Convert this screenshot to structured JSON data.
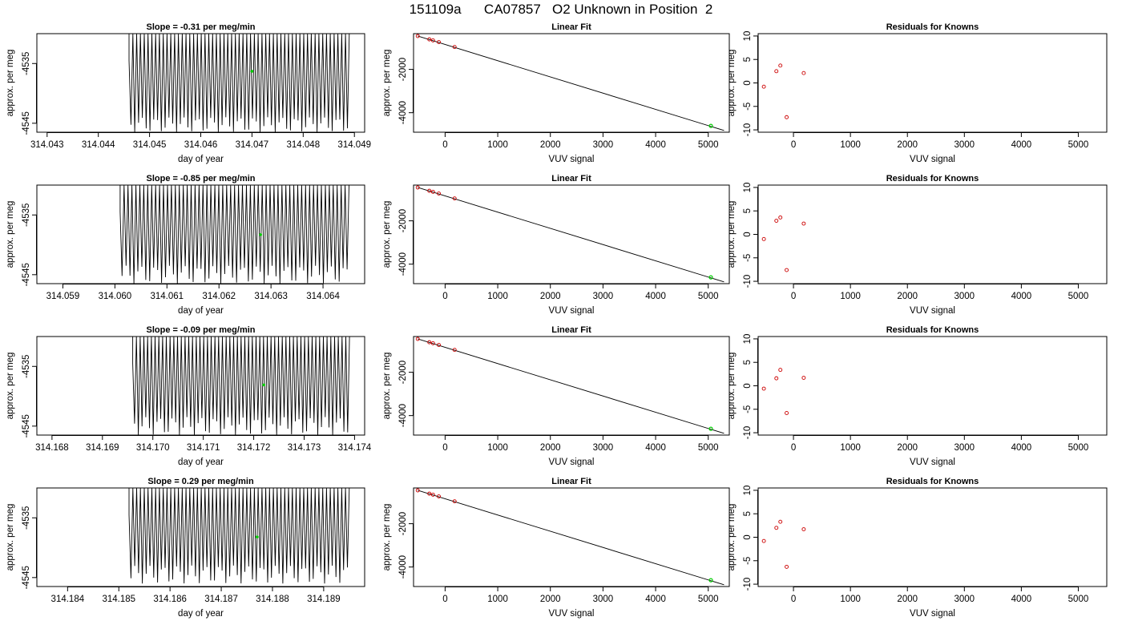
{
  "page_title": "151109a      CA07857   O2 Unknown in Position  2",
  "colors": {
    "line": "#000000",
    "known_point": "#cc0000",
    "unknown_point": "#00cc00",
    "axis": "#000000"
  },
  "chart_data": [
    {
      "panel": "time-series",
      "row": 1,
      "type": "line",
      "title": "Slope =  -0.31  per meg/min",
      "xlabel": "day of year",
      "ylabel": "approx. per meg",
      "xlim": [
        314.0428,
        314.0492
      ],
      "ylim": [
        -4546.5,
        -4530.0
      ],
      "xticks": [
        314.043,
        314.044,
        314.045,
        314.046,
        314.047,
        314.048,
        314.049
      ],
      "xtick_labels": [
        "314.043",
        "314.044",
        "314.045",
        "314.046",
        "314.047",
        "314.048",
        "314.049"
      ],
      "yticks": [
        -4535,
        -4545
      ],
      "ytick_labels": [
        "-4535",
        "-4545"
      ],
      "trace": {
        "x_start": 314.0446,
        "x_end": 314.0489,
        "y_top": -4530.0,
        "y_bottom": -4546.5,
        "cycles": 58,
        "onset_y": -4534.5,
        "bottom_variation": [
          -4544.0,
          -4546.5
        ]
      },
      "unknown_point": {
        "x": 314.047,
        "y": -4536.3
      }
    },
    {
      "panel": "linear-fit",
      "row": 1,
      "type": "scatter",
      "title": "Linear Fit",
      "xlabel": "VUV signal",
      "ylabel": "approx. per meg",
      "xlim": [
        -600,
        5400
      ],
      "ylim": [
        -4900,
        -350
      ],
      "xticks": [
        0,
        1000,
        2000,
        3000,
        4000,
        5000
      ],
      "xtick_labels": [
        "0",
        "1000",
        "2000",
        "3000",
        "4000",
        "5000"
      ],
      "yticks": [
        -2000,
        -4000
      ],
      "ytick_labels": [
        "-2000",
        "-4000"
      ],
      "fit_line": {
        "x": [
          -520,
          5300
        ],
        "y": [
          -460,
          -4820
        ]
      },
      "known_points": {
        "x": [
          -520,
          -300,
          -230,
          -120,
          180
        ],
        "y": [
          -461,
          -614,
          -661,
          -740,
          -966
        ]
      },
      "unknown_point": {
        "x": 5050,
        "y": -4609
      }
    },
    {
      "panel": "residuals",
      "row": 1,
      "type": "scatter",
      "title": "Residuals for Knowns",
      "xlabel": "VUV signal",
      "ylabel": "approx. per meg",
      "xlim": [
        -620,
        5500
      ],
      "ylim": [
        -10.5,
        10.5
      ],
      "xticks": [
        0,
        1000,
        2000,
        3000,
        4000,
        5000
      ],
      "xtick_labels": [
        "0",
        "1000",
        "2000",
        "3000",
        "4000",
        "5000"
      ],
      "yticks": [
        10,
        5,
        0,
        -5,
        -10
      ],
      "ytick_labels": [
        "10",
        "5",
        "0",
        "-5",
        "-10"
      ],
      "points": {
        "x": [
          -520,
          -300,
          -230,
          -120,
          180
        ],
        "y": [
          -0.8,
          2.5,
          3.7,
          -7.3,
          2.1
        ]
      }
    },
    {
      "panel": "time-series",
      "row": 2,
      "type": "line",
      "title": "Slope =  -0.85  per meg/min",
      "xlabel": "day of year",
      "ylabel": "approx. per meg",
      "xlim": [
        314.0585,
        314.0648
      ],
      "ylim": [
        -4546.5,
        -4530.0
      ],
      "xticks": [
        314.059,
        314.06,
        314.061,
        314.062,
        314.063,
        314.064
      ],
      "xtick_labels": [
        "314.059",
        "314.060",
        "314.061",
        "314.062",
        "314.063",
        "314.064"
      ],
      "yticks": [
        -4535,
        -4545
      ],
      "ytick_labels": [
        "-4535",
        "-4545"
      ],
      "trace": {
        "x_start": 314.0601,
        "x_end": 314.0645,
        "y_top": -4530.0,
        "y_bottom": -4546.5,
        "cycles": 58,
        "onset_y": -4534.5,
        "bottom_variation": [
          -4543.5,
          -4546.5
        ]
      },
      "unknown_point": {
        "x": 314.0628,
        "y": -4538.3
      }
    },
    {
      "panel": "linear-fit",
      "row": 2,
      "type": "scatter",
      "title": "Linear Fit",
      "xlabel": "VUV signal",
      "ylabel": "approx. per meg",
      "xlim": [
        -600,
        5400
      ],
      "ylim": [
        -4900,
        -350
      ],
      "xticks": [
        0,
        1000,
        2000,
        3000,
        4000,
        5000
      ],
      "xtick_labels": [
        "0",
        "1000",
        "2000",
        "3000",
        "4000",
        "5000"
      ],
      "yticks": [
        -2000,
        -4000
      ],
      "ytick_labels": [
        "-2000",
        "-4000"
      ],
      "fit_line": {
        "x": [
          -520,
          5300
        ],
        "y": [
          -460,
          -4820
        ]
      },
      "known_points": {
        "x": [
          -520,
          -300,
          -230,
          -120,
          180
        ],
        "y": [
          -461,
          -614,
          -661,
          -740,
          -966
        ]
      },
      "unknown_point": {
        "x": 5050,
        "y": -4609
      }
    },
    {
      "panel": "residuals",
      "row": 2,
      "type": "scatter",
      "title": "Residuals for Knowns",
      "xlabel": "VUV signal",
      "ylabel": "approx. per meg",
      "xlim": [
        -620,
        5500
      ],
      "ylim": [
        -10.5,
        10.5
      ],
      "xticks": [
        0,
        1000,
        2000,
        3000,
        4000,
        5000
      ],
      "xtick_labels": [
        "0",
        "1000",
        "2000",
        "3000",
        "4000",
        "5000"
      ],
      "yticks": [
        10,
        5,
        0,
        -5,
        -10
      ],
      "ytick_labels": [
        "10",
        "5",
        "0",
        "-5",
        "-10"
      ],
      "points": {
        "x": [
          -520,
          -300,
          -230,
          -120,
          180
        ],
        "y": [
          -1.0,
          2.9,
          3.6,
          -7.6,
          2.3
        ]
      }
    },
    {
      "panel": "time-series",
      "row": 3,
      "type": "line",
      "title": "Slope =  -0.09  per meg/min",
      "xlabel": "day of year",
      "ylabel": "approx. per meg",
      "xlim": [
        314.1677,
        314.1742
      ],
      "ylim": [
        -4546.5,
        -4530.0
      ],
      "xticks": [
        314.168,
        314.169,
        314.17,
        314.171,
        314.172,
        314.173,
        314.174
      ],
      "xtick_labels": [
        "314.168",
        "314.169",
        "314.170",
        "314.171",
        "314.172",
        "314.173",
        "314.174"
      ],
      "yticks": [
        -4535,
        -4545
      ],
      "ytick_labels": [
        "-4535",
        "-4545"
      ],
      "trace": {
        "x_start": 314.1696,
        "x_end": 314.1739,
        "y_top": -4530.0,
        "y_bottom": -4546.5,
        "cycles": 58,
        "onset_y": -4534.5,
        "bottom_variation": [
          -4543.5,
          -4546.5
        ]
      },
      "unknown_point": {
        "x": 314.1722,
        "y": -4538.1
      }
    },
    {
      "panel": "linear-fit",
      "row": 3,
      "type": "scatter",
      "title": "Linear Fit",
      "xlabel": "VUV signal",
      "ylabel": "approx. per meg",
      "xlim": [
        -600,
        5400
      ],
      "ylim": [
        -4900,
        -350
      ],
      "xticks": [
        0,
        1000,
        2000,
        3000,
        4000,
        5000
      ],
      "xtick_labels": [
        "0",
        "1000",
        "2000",
        "3000",
        "4000",
        "5000"
      ],
      "yticks": [
        -2000,
        -4000
      ],
      "ytick_labels": [
        "-2000",
        "-4000"
      ],
      "fit_line": {
        "x": [
          -520,
          5300
        ],
        "y": [
          -460,
          -4820
        ]
      },
      "known_points": {
        "x": [
          -520,
          -300,
          -230,
          -120,
          180
        ],
        "y": [
          -461,
          -614,
          -661,
          -740,
          -966
        ]
      },
      "unknown_point": {
        "x": 5050,
        "y": -4609
      }
    },
    {
      "panel": "residuals",
      "row": 3,
      "type": "scatter",
      "title": "Residuals for Knowns",
      "xlabel": "VUV signal",
      "ylabel": "approx. per meg",
      "xlim": [
        -620,
        5500
      ],
      "ylim": [
        -10.5,
        10.5
      ],
      "xticks": [
        0,
        1000,
        2000,
        3000,
        4000,
        5000
      ],
      "xtick_labels": [
        "0",
        "1000",
        "2000",
        "3000",
        "4000",
        "5000"
      ],
      "yticks": [
        10,
        5,
        0,
        -5,
        -10
      ],
      "ytick_labels": [
        "10",
        "5",
        "0",
        "-5",
        "-10"
      ],
      "points": {
        "x": [
          -520,
          -300,
          -230,
          -120,
          180
        ],
        "y": [
          -0.6,
          1.6,
          3.4,
          -5.8,
          1.7
        ]
      }
    },
    {
      "panel": "time-series",
      "row": 4,
      "type": "line",
      "title": "Slope =  0.29  per meg/min",
      "xlabel": "day of year",
      "ylabel": "approx. per meg",
      "xlim": [
        314.1834,
        314.1898
      ],
      "ylim": [
        -4546.5,
        -4530.0
      ],
      "xticks": [
        314.184,
        314.185,
        314.186,
        314.187,
        314.188,
        314.189
      ],
      "xtick_labels": [
        "314.184",
        "314.185",
        "314.186",
        "314.187",
        "314.188",
        "314.189"
      ],
      "yticks": [
        -4535,
        -4545
      ],
      "ytick_labels": [
        "-4535",
        "-4545"
      ],
      "trace": {
        "x_start": 314.1852,
        "x_end": 314.1895,
        "y_top": -4530.0,
        "y_bottom": -4546.5,
        "cycles": 58,
        "onset_y": -4534.5,
        "bottom_variation": [
          -4543.0,
          -4546.0
        ]
      },
      "unknown_point": {
        "x": 314.1877,
        "y": -4538.2
      }
    },
    {
      "panel": "linear-fit",
      "row": 4,
      "type": "scatter",
      "title": "Linear Fit",
      "xlabel": "VUV signal",
      "ylabel": "approx. per meg",
      "xlim": [
        -600,
        5400
      ],
      "ylim": [
        -4900,
        -350
      ],
      "xticks": [
        0,
        1000,
        2000,
        3000,
        4000,
        5000
      ],
      "xtick_labels": [
        "0",
        "1000",
        "2000",
        "3000",
        "4000",
        "5000"
      ],
      "yticks": [
        -2000,
        -4000
      ],
      "ytick_labels": [
        "-2000",
        "-4000"
      ],
      "fit_line": {
        "x": [
          -520,
          5300
        ],
        "y": [
          -460,
          -4820
        ]
      },
      "known_points": {
        "x": [
          -520,
          -300,
          -230,
          -120,
          180
        ],
        "y": [
          -461,
          -614,
          -661,
          -740,
          -966
        ]
      },
      "unknown_point": {
        "x": 5050,
        "y": -4609
      }
    },
    {
      "panel": "residuals",
      "row": 4,
      "type": "scatter",
      "title": "Residuals for Knowns",
      "xlabel": "VUV signal",
      "ylabel": "approx. per meg",
      "xlim": [
        -620,
        5500
      ],
      "ylim": [
        -10.5,
        10.5
      ],
      "xticks": [
        0,
        1000,
        2000,
        3000,
        4000,
        5000
      ],
      "xtick_labels": [
        "0",
        "1000",
        "2000",
        "3000",
        "4000",
        "5000"
      ],
      "yticks": [
        10,
        5,
        0,
        -5,
        -10
      ],
      "ytick_labels": [
        "10",
        "5",
        "0",
        "-5",
        "-10"
      ],
      "points": {
        "x": [
          -520,
          -300,
          -230,
          -120,
          180
        ],
        "y": [
          -0.8,
          2.0,
          3.3,
          -6.3,
          1.7
        ]
      }
    }
  ]
}
